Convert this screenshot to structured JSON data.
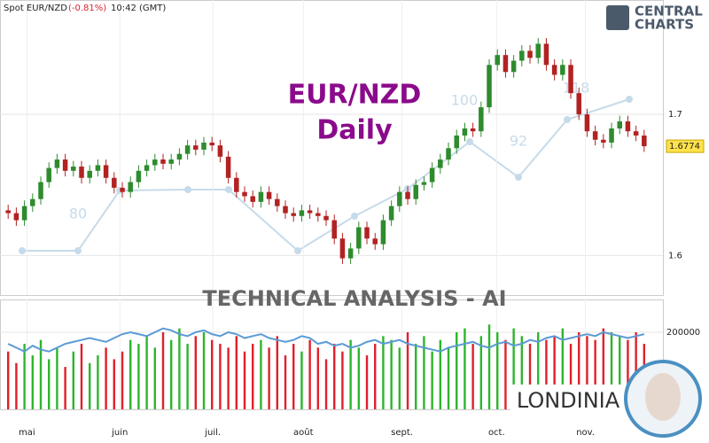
{
  "header": {
    "symbol": "Spot EUR/NZD",
    "change": "(-0.81%)",
    "time": "10:42 (GMT)"
  },
  "watermark": {
    "title": "EUR/NZD",
    "subtitle": "Daily",
    "banner": "TECHNICAL  ANALYSIS - AI",
    "numbers": [
      "80",
      "92",
      "100",
      "118"
    ]
  },
  "branding": {
    "logo_top": "CENTRAL",
    "logo_bottom": "CHARTS",
    "footer": "LONDINIA"
  },
  "chart_data": [
    {
      "type": "candlestick",
      "up_color": "#2e8b2e",
      "down_color": "#b22222",
      "open": [
        1.632,
        1.63,
        1.625,
        1.635,
        1.64,
        1.652,
        1.662,
        1.668,
        1.66,
        1.663,
        1.655,
        1.66,
        1.664,
        1.655,
        1.648,
        1.645,
        1.652,
        1.66,
        1.664,
        1.668,
        1.665,
        1.668,
        1.672,
        1.678,
        1.675,
        1.68,
        1.678,
        1.67,
        1.655,
        1.645,
        1.642,
        1.638,
        1.645,
        1.64,
        1.635,
        1.63,
        1.628,
        1.632,
        1.63,
        1.628,
        1.625,
        1.612,
        1.598,
        1.605,
        1.62,
        1.612,
        1.608,
        1.625,
        1.635,
        1.645,
        1.64,
        1.65,
        1.652,
        1.662,
        1.668,
        1.676,
        1.685,
        1.69,
        1.688,
        1.705,
        1.735,
        1.742,
        1.73,
        1.738,
        1.745,
        1.74,
        1.75,
        1.735,
        1.728,
        1.735,
        1.715,
        1.7,
        1.688,
        1.682,
        1.68,
        1.69,
        1.695,
        1.688,
        1.685
      ],
      "high": [
        1.636,
        1.634,
        1.639,
        1.644,
        1.656,
        1.666,
        1.672,
        1.672,
        1.667,
        1.667,
        1.664,
        1.668,
        1.668,
        1.659,
        1.652,
        1.656,
        1.664,
        1.668,
        1.672,
        1.672,
        1.672,
        1.676,
        1.682,
        1.682,
        1.684,
        1.684,
        1.682,
        1.674,
        1.659,
        1.649,
        1.646,
        1.649,
        1.649,
        1.644,
        1.639,
        1.634,
        1.636,
        1.636,
        1.634,
        1.632,
        1.629,
        1.616,
        1.609,
        1.624,
        1.624,
        1.616,
        1.629,
        1.639,
        1.649,
        1.649,
        1.654,
        1.656,
        1.666,
        1.672,
        1.68,
        1.689,
        1.694,
        1.694,
        1.709,
        1.739,
        1.746,
        1.746,
        1.742,
        1.749,
        1.749,
        1.754,
        1.754,
        1.739,
        1.739,
        1.739,
        1.719,
        1.704,
        1.692,
        1.686,
        1.694,
        1.699,
        1.699,
        1.692,
        1.689
      ],
      "low": [
        1.626,
        1.621,
        1.621,
        1.631,
        1.636,
        1.648,
        1.658,
        1.656,
        1.656,
        1.651,
        1.651,
        1.656,
        1.651,
        1.644,
        1.641,
        1.641,
        1.648,
        1.656,
        1.66,
        1.661,
        1.661,
        1.664,
        1.668,
        1.671,
        1.671,
        1.674,
        1.666,
        1.651,
        1.641,
        1.638,
        1.634,
        1.634,
        1.636,
        1.631,
        1.626,
        1.624,
        1.624,
        1.626,
        1.624,
        1.621,
        1.608,
        1.594,
        1.594,
        1.601,
        1.608,
        1.604,
        1.604,
        1.621,
        1.631,
        1.636,
        1.636,
        1.646,
        1.648,
        1.658,
        1.664,
        1.672,
        1.681,
        1.684,
        1.684,
        1.701,
        1.731,
        1.726,
        1.726,
        1.734,
        1.736,
        1.736,
        1.731,
        1.724,
        1.724,
        1.711,
        1.696,
        1.684,
        1.678,
        1.676,
        1.676,
        1.686,
        1.684,
        1.681,
        1.6734
      ],
      "close": [
        1.63,
        1.625,
        1.635,
        1.64,
        1.652,
        1.662,
        1.668,
        1.66,
        1.663,
        1.655,
        1.66,
        1.664,
        1.655,
        1.648,
        1.645,
        1.652,
        1.66,
        1.664,
        1.668,
        1.665,
        1.668,
        1.672,
        1.678,
        1.675,
        1.68,
        1.678,
        1.67,
        1.655,
        1.645,
        1.642,
        1.638,
        1.645,
        1.64,
        1.635,
        1.63,
        1.628,
        1.632,
        1.63,
        1.628,
        1.625,
        1.612,
        1.598,
        1.605,
        1.62,
        1.612,
        1.608,
        1.625,
        1.635,
        1.645,
        1.64,
        1.65,
        1.652,
        1.662,
        1.668,
        1.676,
        1.685,
        1.69,
        1.688,
        1.705,
        1.735,
        1.742,
        1.73,
        1.738,
        1.745,
        1.74,
        1.75,
        1.735,
        1.728,
        1.735,
        1.715,
        1.7,
        1.688,
        1.682,
        1.68,
        1.69,
        1.695,
        1.688,
        1.685,
        1.6774
      ],
      "xlim": [
        -1,
        80.3
      ],
      "ylim": [
        1.572,
        1.781
      ],
      "yticks": [
        1.6,
        1.7
      ],
      "xticks": [
        {
          "value": 2.3,
          "label": "mai"
        },
        {
          "value": 13.7,
          "label": "juin"
        },
        {
          "value": 25.1,
          "label": "juil."
        },
        {
          "value": 36.2,
          "label": "août"
        },
        {
          "value": 48.3,
          "label": "sept."
        },
        {
          "value": 59.9,
          "label": "oct."
        },
        {
          "value": 70.8,
          "label": "nov."
        }
      ],
      "grid": true
    },
    {
      "type": "bar",
      "up_color": "#2db52d",
      "down_color": "#e0202a",
      "line_color": "#5b9bd5",
      "values": [
        150000,
        120000,
        170000,
        140000,
        180000,
        130000,
        160000,
        110000,
        150000,
        170000,
        120000,
        140000,
        160000,
        130000,
        150000,
        180000,
        170000,
        190000,
        160000,
        200000,
        180000,
        210000,
        170000,
        190000,
        200000,
        180000,
        170000,
        160000,
        190000,
        150000,
        170000,
        180000,
        160000,
        190000,
        140000,
        170000,
        150000,
        180000,
        160000,
        130000,
        170000,
        150000,
        180000,
        160000,
        140000,
        170000,
        190000,
        180000,
        160000,
        200000,
        170000,
        190000,
        150000,
        180000,
        160000,
        200000,
        210000,
        170000,
        190000,
        220000,
        200000,
        180000,
        210000,
        190000,
        170000,
        200000,
        180000,
        190000,
        210000,
        170000,
        200000,
        190000,
        180000,
        210000,
        200000,
        190000,
        180000,
        200000,
        170000
      ],
      "line_values": [
        170000,
        160000,
        150000,
        165000,
        155000,
        150000,
        160000,
        170000,
        175000,
        180000,
        185000,
        180000,
        175000,
        185000,
        195000,
        200000,
        195000,
        190000,
        200000,
        210000,
        205000,
        195000,
        190000,
        200000,
        205000,
        195000,
        190000,
        200000,
        195000,
        185000,
        190000,
        195000,
        185000,
        180000,
        175000,
        180000,
        190000,
        185000,
        170000,
        175000,
        165000,
        170000,
        160000,
        165000,
        175000,
        180000,
        170000,
        175000,
        180000,
        170000,
        165000,
        160000,
        155000,
        150000,
        160000,
        165000,
        170000,
        175000,
        165000,
        160000,
        170000,
        175000,
        165000,
        170000,
        180000,
        175000,
        185000,
        190000,
        180000,
        185000,
        190000,
        195000,
        190000,
        200000,
        195000,
        190000,
        185000,
        190000,
        195000
      ],
      "ylim": [
        0,
        285000
      ],
      "yticks": [
        200000
      ]
    }
  ]
}
